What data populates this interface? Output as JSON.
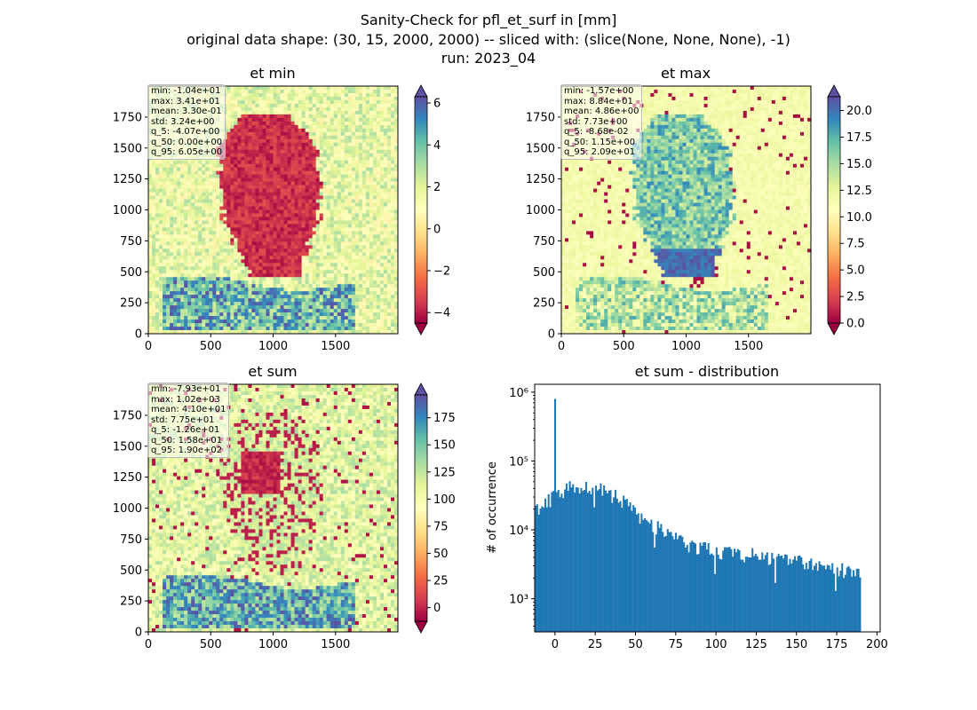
{
  "suptitle": [
    "Sanity-Check for pfl_et_surf in [mm]",
    "original data shape: (30, 15, 2000, 2000) -- sliced with: (slice(None, None, None), -1)",
    "run: 2023_04"
  ],
  "chart_data": [
    {
      "type": "heatmap",
      "title": "et min",
      "xlim": [
        0,
        2000
      ],
      "ylim": [
        0,
        2000
      ],
      "xticks": [
        "0",
        "500",
        "1000",
        "1500"
      ],
      "yticks": [
        "0",
        "250",
        "500",
        "750",
        "1000",
        "1250",
        "1500",
        "1750"
      ],
      "colormap": "Spectral",
      "colorbar": {
        "min": -4.5,
        "max": 6.3,
        "ticks": [
          "−4",
          "−2",
          "0",
          "2",
          "4",
          "6"
        ],
        "tick_values": [
          -4,
          -2,
          0,
          2,
          4,
          6
        ],
        "extend": "both"
      },
      "stats": [
        "min: -1.04e+01",
        "max: 3.41e+01",
        "mean: 3.30e-01",
        "std: 3.24e+00",
        "q_5: -4.07e+00",
        "q_50: 0.00e+00",
        "q_95: 6.05e+00"
      ]
    },
    {
      "type": "heatmap",
      "title": "et max",
      "xlim": [
        0,
        2000
      ],
      "ylim": [
        0,
        2000
      ],
      "xticks": [
        "0",
        "500",
        "1000",
        "1500"
      ],
      "yticks": [
        "0",
        "250",
        "500",
        "750",
        "1000",
        "1250",
        "1500",
        "1750"
      ],
      "colormap": "Spectral",
      "colorbar": {
        "min": 0,
        "max": 21.3,
        "ticks": [
          "0.0",
          "2.5",
          "5.0",
          "7.5",
          "10.0",
          "12.5",
          "15.0",
          "17.5",
          "20.0"
        ],
        "tick_values": [
          0,
          2.5,
          5,
          7.5,
          10,
          12.5,
          15,
          17.5,
          20
        ],
        "extend": "both"
      },
      "stats": [
        "min: -1.57e+00",
        "max: 8.84e+01",
        "mean: 4.86e+00",
        "std: 7.73e+00",
        "q_5: -8.68e-02",
        "q_50: 1.15e+00",
        "q_95: 2.09e+01"
      ]
    },
    {
      "type": "heatmap",
      "title": "et sum",
      "xlim": [
        0,
        2000
      ],
      "ylim": [
        0,
        2000
      ],
      "xticks": [
        "0",
        "500",
        "1000",
        "1500"
      ],
      "yticks": [
        "0",
        "250",
        "500",
        "750",
        "1000",
        "1250",
        "1500",
        "1750"
      ],
      "colormap": "Spectral",
      "colorbar": {
        "min": -12.6,
        "max": 196,
        "ticks": [
          "0",
          "25",
          "50",
          "75",
          "100",
          "125",
          "150",
          "175"
        ],
        "tick_values": [
          0,
          25,
          50,
          75,
          100,
          125,
          150,
          175
        ],
        "extend": "both"
      },
      "stats": [
        "min: -7.93e+01",
        "max: 1.02e+03",
        "mean: 4.10e+01",
        "std: 7.75e+01",
        "q_5: -1.26e+01",
        "q_50: 1.58e+01",
        "q_95: 1.90e+02"
      ]
    },
    {
      "type": "bar",
      "title": "et sum - distribution",
      "ylabel": "# of occurrence",
      "xlabel": "",
      "yscale": "log",
      "xlim": [
        -12.6,
        202
      ],
      "ylim": [
        330,
        1300000
      ],
      "xticks": [
        "0",
        "25",
        "50",
        "75",
        "100",
        "125",
        "150",
        "175",
        "200"
      ],
      "xtick_values": [
        0,
        25,
        50,
        75,
        100,
        125,
        150,
        175,
        200
      ],
      "yticks": [
        "10³",
        "10⁴",
        "10⁵",
        "10⁶"
      ],
      "ytick_values": [
        1000,
        10000,
        100000,
        1000000
      ],
      "color": "#1f77b4",
      "histogram": {
        "range": [
          -12.6,
          190
        ],
        "anchors_x": [
          -12.6,
          -10,
          -5,
          -1,
          0,
          1,
          5,
          10,
          15,
          20,
          25,
          30,
          35,
          40,
          45,
          50,
          60,
          70,
          75,
          80,
          90,
          100,
          110,
          120,
          130,
          140,
          150,
          160,
          170,
          175,
          180,
          185,
          190
        ],
        "anchors_y": [
          18000,
          22000,
          27000,
          30000,
          800000,
          30000,
          36000,
          42000,
          44000,
          45000,
          42000,
          40000,
          33000,
          30000,
          23000,
          17000,
          12000,
          9000,
          8000,
          6500,
          5500,
          5000,
          4700,
          4400,
          4200,
          3800,
          3600,
          3300,
          3000,
          2800,
          2600,
          2500,
          2200
        ]
      }
    }
  ]
}
